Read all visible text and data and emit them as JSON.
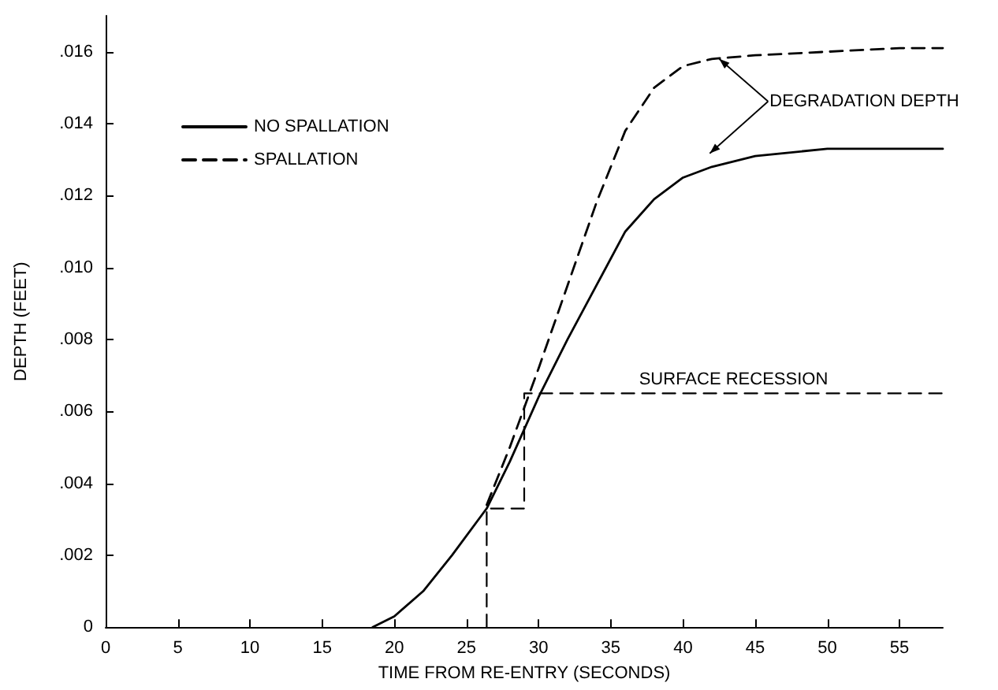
{
  "chart_data": {
    "type": "line",
    "xlabel": "TIME FROM RE-ENTRY (SECONDS)",
    "ylabel": "DEPTH (FEET)",
    "xlim": [
      0,
      58
    ],
    "xticks": [
      0,
      5,
      10,
      15,
      20,
      25,
      30,
      35,
      40,
      45,
      50,
      55
    ],
    "ylim": [
      0,
      0.017
    ],
    "yticks": [
      0,
      {
        "value": 0.002,
        "label": ".002"
      },
      {
        "value": 0.004,
        "label": ".004"
      },
      {
        "value": 0.006,
        "label": ".006"
      },
      {
        "value": 0.008,
        "label": ".008"
      },
      {
        "value": 0.01,
        "label": ".010"
      },
      {
        "value": 0.012,
        "label": ".012"
      },
      {
        "value": 0.014,
        "label": ".014"
      },
      {
        "value": 0.016,
        "label": ".016"
      }
    ],
    "grid": false,
    "legend": "top left",
    "marker": "none",
    "series": [
      {
        "name": "NO SPALLATION",
        "color": "#000000",
        "line_style": "solid",
        "x": [
          18.5,
          20,
          22,
          24,
          26.4,
          28,
          30,
          32,
          34,
          36,
          38,
          40,
          42,
          45,
          50,
          55,
          58
        ],
        "values": [
          0,
          0.0003,
          0.001,
          0.002,
          0.0033,
          0.0046,
          0.0064,
          0.008,
          0.0095,
          0.011,
          0.0119,
          0.0125,
          0.0128,
          0.0131,
          0.0133,
          0.0133,
          0.0133
        ]
      },
      {
        "name": "SPALLATION",
        "color": "#000000",
        "line_style": "dashed",
        "x": [
          26.4,
          28,
          30,
          32,
          34,
          36,
          38,
          40,
          42,
          45,
          50,
          55,
          58
        ],
        "values": [
          0.0034,
          0.005,
          0.0072,
          0.0095,
          0.0118,
          0.0138,
          0.015,
          0.0156,
          0.0158,
          0.0159,
          0.016,
          0.0161,
          0.0161
        ]
      },
      {
        "name": "SURFACE RECESSION",
        "type": "step",
        "color": "#000000",
        "line_style": "dashed",
        "x": [
          26.4,
          26.4,
          29,
          58
        ],
        "values": [
          0,
          0.0033,
          0.0065,
          0.0065
        ]
      }
    ],
    "annotations": [
      {
        "text": "DEGRADATION DEPTH",
        "x": 42.4,
        "y": 0.0158
      }
    ]
  }
}
